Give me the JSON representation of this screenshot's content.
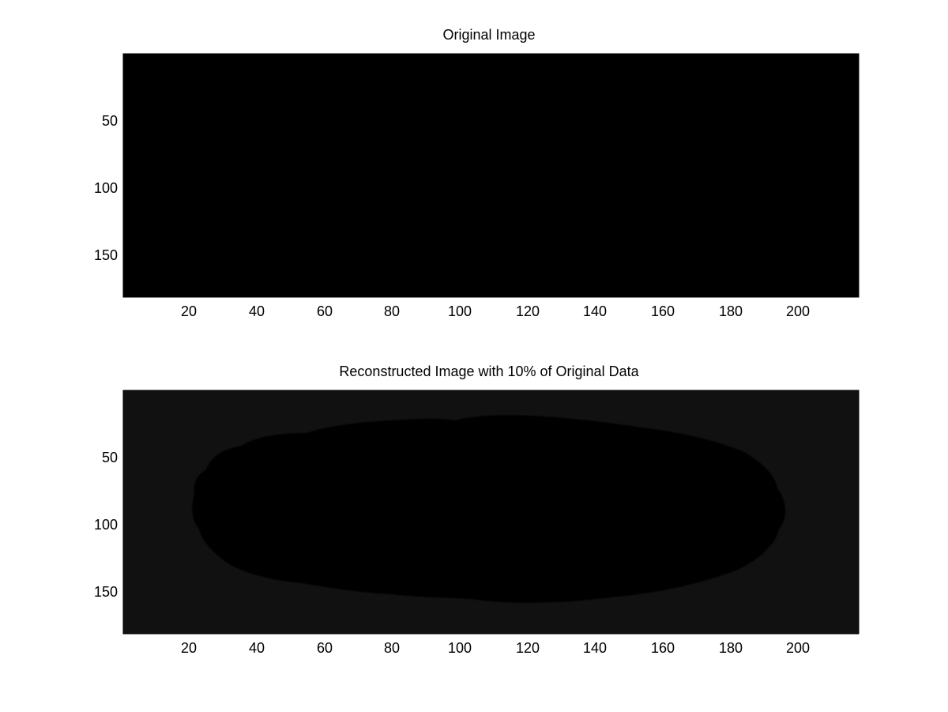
{
  "panels": [
    {
      "title": "Original Image",
      "background_color": "#000000",
      "intensity_levels": {
        "background": "#000000",
        "gray_matter": "#555555",
        "white_matter": "#aaaaaa",
        "ventricles": "#ffffff"
      },
      "x_ticks": [
        "20",
        "40",
        "60",
        "80",
        "100",
        "120",
        "140",
        "160",
        "180",
        "200"
      ],
      "y_ticks": [
        "50",
        "100",
        "150"
      ]
    },
    {
      "title": "Reconstructed Image with 10% of Original Data",
      "background_color": "#111111",
      "intensity_levels": {
        "background": "#111111",
        "gray_matter": "#5a5a5a",
        "white_matter": "#a4a4a4",
        "ventricles": "#e6e6e6"
      },
      "x_ticks": [
        "20",
        "40",
        "60",
        "80",
        "100",
        "120",
        "140",
        "160",
        "180",
        "200"
      ],
      "y_ticks": [
        "50",
        "100",
        "150"
      ]
    }
  ]
}
